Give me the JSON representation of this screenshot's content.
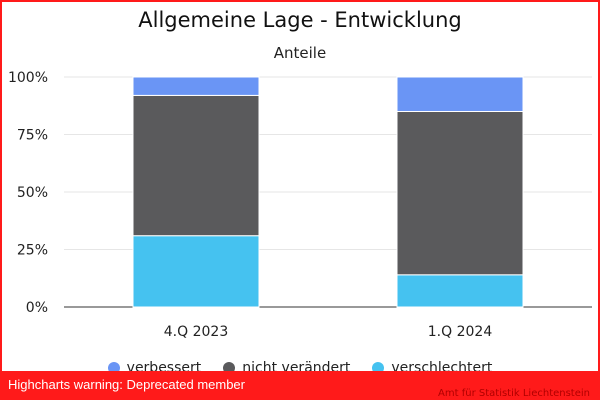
{
  "chart_data": {
    "type": "bar",
    "stacked": true,
    "title": "Allgemeine Lage - Entwicklung",
    "subtitle": "Anteile",
    "categories": [
      "4.Q 2023",
      "1.Q 2024"
    ],
    "series": [
      {
        "name": "verbessert",
        "values": [
          8,
          15
        ],
        "color": "#6a95f5"
      },
      {
        "name": "nicht verändert",
        "values": [
          61,
          71
        ],
        "color": "#5a5a5c"
      },
      {
        "name": "verschlechtert",
        "values": [
          31,
          14
        ],
        "color": "#45c2f0"
      }
    ],
    "ylim": [
      0,
      100
    ],
    "yticks": [
      "0%",
      "25%",
      "50%",
      "75%",
      "100%"
    ],
    "grid": true,
    "legend": "bottom-center"
  },
  "warning": "Highcharts warning: Deprecated member",
  "credit": "Amt für Statistik Liechtenstein"
}
